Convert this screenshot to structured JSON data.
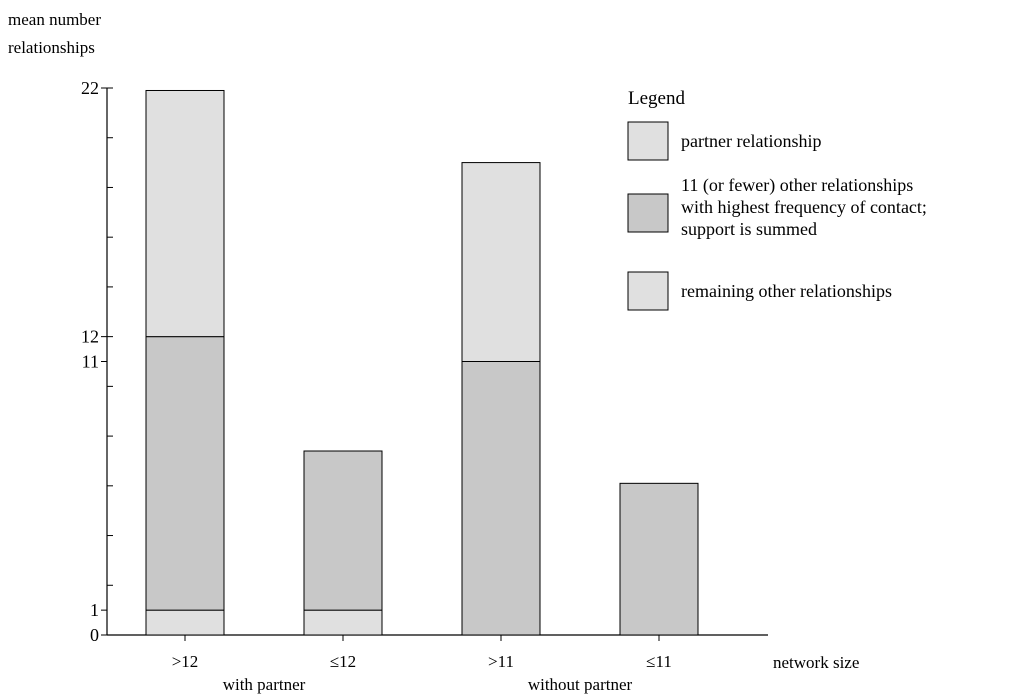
{
  "chart_data": {
    "type": "bar",
    "stacked": true,
    "ylabel": [
      "mean number",
      "relationships"
    ],
    "xlabel": "network size",
    "ylim": [
      0,
      22
    ],
    "yticks": [
      {
        "value": 22,
        "label": "22"
      },
      {
        "value": 12,
        "label": "12"
      },
      {
        "value": 11,
        "label": "11"
      },
      {
        "value": 1,
        "label": "1"
      },
      {
        "value": 0,
        "label": "0"
      }
    ],
    "categories": [
      ">12",
      "≤12",
      ">11",
      "≤11"
    ],
    "groups": [
      {
        "label": "with partner",
        "categories": [
          0,
          1
        ]
      },
      {
        "label": "without partner",
        "categories": [
          2,
          3
        ]
      }
    ],
    "series": [
      {
        "name": "partner relationship",
        "color": "#e0e0e0",
        "values": [
          1,
          1,
          0,
          0
        ]
      },
      {
        "name": "11 (or fewer) other relationships with highest frequency of contact; support is summed",
        "color": "#c8c8c8",
        "values": [
          11,
          6.4,
          11,
          6.1
        ]
      },
      {
        "name": "remaining other relationships",
        "color": "#e0e0e0",
        "values": [
          9.9,
          0,
          8,
          0
        ]
      }
    ],
    "legend": {
      "title": "Legend",
      "placement": "right",
      "entries": [
        {
          "lines": [
            "partner relationship"
          ],
          "color": "#e0e0e0"
        },
        {
          "lines": [
            "11 (or fewer) other relationships",
            "with highest frequency of contact;",
            "support is summed"
          ],
          "color": "#c8c8c8"
        },
        {
          "lines": [
            "remaining other relationships"
          ],
          "color": "#e0e0e0"
        }
      ]
    }
  }
}
